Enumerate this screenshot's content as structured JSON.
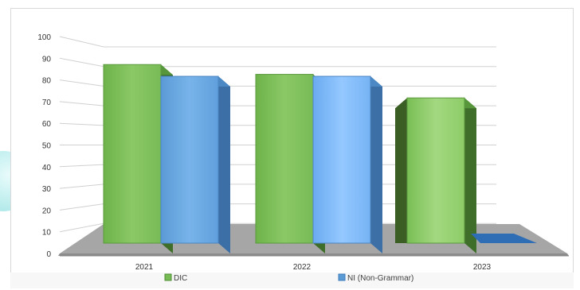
{
  "chart_data": {
    "type": "bar",
    "title": "",
    "xlabel": "",
    "ylabel": "",
    "categories": [
      "2021",
      "2022",
      "2023"
    ],
    "series": [
      {
        "name": "DIC",
        "values": [
          91,
          86,
          74
        ],
        "color": "#77bb55"
      },
      {
        "name": "NI (Non-Grammar)",
        "values": [
          85,
          85,
          0
        ],
        "color": "#5b9bd5"
      }
    ],
    "ylim": [
      0,
      100
    ],
    "yticks": [
      0,
      10,
      20,
      30,
      40,
      50,
      60,
      70,
      80,
      90,
      100
    ],
    "grid": true,
    "legend_position": "bottom",
    "style": "3d"
  }
}
